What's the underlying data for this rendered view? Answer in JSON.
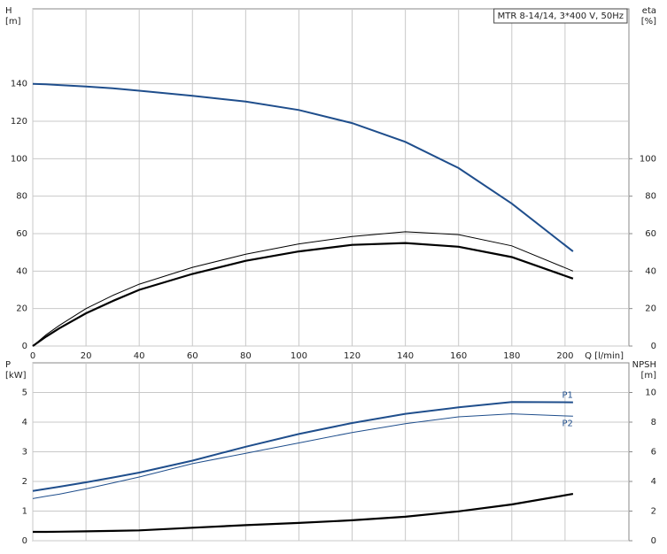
{
  "chart_data": [
    {
      "type": "line",
      "title": "MTR 8-14/14, 3*400 V, 50Hz",
      "x_label": "Q [l/min]",
      "y_label": [
        "H",
        "[m]"
      ],
      "y2_label": [
        "eta",
        "[%]"
      ],
      "x": [
        0,
        5,
        10,
        20,
        30,
        40,
        60,
        80,
        100,
        120,
        140,
        160,
        180,
        203
      ],
      "xlim": [
        0,
        224
      ],
      "xticks": [
        0,
        20,
        40,
        60,
        80,
        100,
        120,
        140,
        160,
        180,
        200
      ],
      "xtick_labels": true,
      "ylim": [
        0,
        180
      ],
      "yticks": [
        0,
        20,
        40,
        60,
        80,
        100,
        120,
        140
      ],
      "y2lim": [
        0,
        180
      ],
      "y2ticks": [
        0,
        20,
        40,
        60,
        80,
        100
      ],
      "grid": true,
      "series": [
        {
          "color": "#1f4e8c",
          "width": 2,
          "values": [
            140,
            139.7,
            139.3,
            138.5,
            137.6,
            136.3,
            133.6,
            130.5,
            126,
            119,
            109,
            95,
            76,
            50.5
          ]
        },
        {
          "color": "#000000",
          "width": 1,
          "axis": "y2",
          "values": [
            0,
            6,
            11,
            20,
            27,
            33,
            42,
            49,
            54.5,
            58.5,
            61,
            59.5,
            53.5,
            40
          ]
        },
        {
          "color": "#000000",
          "width": 2.2,
          "axis": "y2",
          "values": [
            0,
            5,
            9.5,
            17.5,
            24,
            30,
            38.5,
            45.5,
            50.5,
            54,
            55,
            53,
            47.5,
            36
          ]
        }
      ]
    },
    {
      "type": "line",
      "y_label": [
        "P",
        "[kW]"
      ],
      "y2_label": [
        "NPSH",
        "[m]"
      ],
      "x": [
        0,
        5,
        10,
        20,
        30,
        40,
        60,
        80,
        100,
        120,
        140,
        160,
        180,
        203
      ],
      "xlim": [
        0,
        224
      ],
      "xticks": [
        0,
        20,
        40,
        60,
        80,
        100,
        120,
        140,
        160,
        180,
        200
      ],
      "xtick_labels": false,
      "ylim": [
        0,
        6
      ],
      "yticks": [
        0,
        1,
        2,
        3,
        4,
        5
      ],
      "y2lim": [
        0,
        12
      ],
      "y2ticks": [
        0,
        2,
        4,
        6,
        8,
        10
      ],
      "grid": true,
      "series": [
        {
          "name": "P1",
          "color": "#1f4e8c",
          "width": 2,
          "values": [
            1.68,
            1.75,
            1.82,
            1.97,
            2.13,
            2.3,
            2.7,
            3.17,
            3.6,
            3.97,
            4.28,
            4.5,
            4.68,
            4.67
          ]
        },
        {
          "name": "P2",
          "color": "#1f4e8c",
          "width": 1,
          "values": [
            1.42,
            1.5,
            1.57,
            1.75,
            1.95,
            2.15,
            2.6,
            2.95,
            3.3,
            3.65,
            3.95,
            4.18,
            4.28,
            4.2
          ]
        },
        {
          "color": "#000000",
          "width": 2.2,
          "axis": "y2",
          "values": [
            0.6,
            0.6,
            0.61,
            0.63,
            0.66,
            0.7,
            0.88,
            1.05,
            1.2,
            1.38,
            1.62,
            1.98,
            2.45,
            3.16
          ]
        }
      ]
    }
  ]
}
